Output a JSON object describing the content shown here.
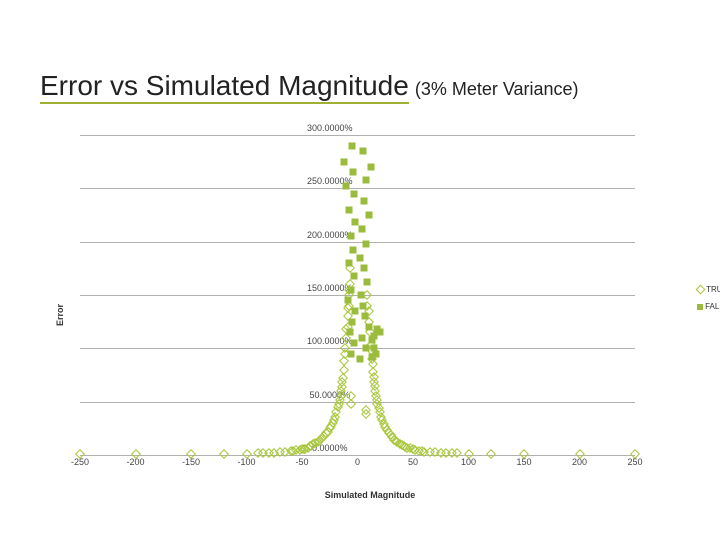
{
  "title": {
    "main": "Error vs Simulated Magnitude",
    "sub": "(3% Meter Variance)",
    "underline_color": "#a0b030"
  },
  "chart": {
    "type": "scatter",
    "background_color": "#ffffff",
    "grid_color": "#b0b0b0",
    "xlabel": "Simulated Magnitude",
    "ylabel": "Error",
    "label_fontsize": 9,
    "tick_fontsize": 9,
    "xlim": [
      -250,
      250
    ],
    "ylim": [
      0,
      300
    ],
    "xticks": [
      -250,
      -200,
      -150,
      -100,
      -50,
      0,
      50,
      100,
      150,
      200,
      250
    ],
    "yticks": [
      0,
      50,
      100,
      150,
      200,
      250,
      300
    ],
    "ytick_labels": [
      "0.0000%",
      "50.0000%",
      "100.0000%",
      "150.0000%",
      "200.0000%",
      "250.0000%",
      "300.0000%"
    ],
    "legend": {
      "items": [
        {
          "label": "TRUE",
          "color": "#a8c63a",
          "marker": "diamond"
        },
        {
          "label": "FALSE",
          "color": "#9bbb3c",
          "marker": "square"
        }
      ]
    },
    "series": {
      "true": {
        "color": "#a8c63a",
        "marker": "diamond",
        "points": [
          [
            -250,
            0.5
          ],
          [
            -200,
            0.6
          ],
          [
            -150,
            0.8
          ],
          [
            -120,
            1.0
          ],
          [
            -100,
            1.2
          ],
          [
            -90,
            1.5
          ],
          [
            -80,
            2.0
          ],
          [
            -70,
            2.5
          ],
          [
            -60,
            3.5
          ],
          [
            -55,
            4.5
          ],
          [
            -50,
            5.5
          ],
          [
            -48,
            6.0
          ],
          [
            -45,
            7.0
          ],
          [
            -42,
            8.5
          ],
          [
            -40,
            10.0
          ],
          [
            -38,
            11.0
          ],
          [
            -36,
            12.0
          ],
          [
            -35,
            13.5
          ],
          [
            -33,
            15.0
          ],
          [
            -32,
            16.0
          ],
          [
            -30,
            18.0
          ],
          [
            -28,
            20.5
          ],
          [
            -27,
            22.0
          ],
          [
            -25,
            25.0
          ],
          [
            -24,
            27.0
          ],
          [
            -22,
            30.0
          ],
          [
            -21,
            33.0
          ],
          [
            -20,
            36.0
          ],
          [
            -19,
            40.0
          ],
          [
            -18,
            45.0
          ],
          [
            -17,
            48.0
          ],
          [
            -16,
            52.0
          ],
          [
            -15,
            55.0
          ],
          [
            -15,
            60.0
          ],
          [
            -14,
            64.0
          ],
          [
            -14,
            68.0
          ],
          [
            -13,
            72.0
          ],
          [
            -12,
            80.0
          ],
          [
            -12,
            88.0
          ],
          [
            -11,
            95.0
          ],
          [
            -11,
            100.0
          ],
          [
            -10,
            110.0
          ],
          [
            -10,
            118.0
          ],
          [
            -9,
            120.0
          ],
          [
            -9,
            130.0
          ],
          [
            -9,
            138.0
          ],
          [
            -8,
            140.0
          ],
          [
            -8,
            150.0
          ],
          [
            -8,
            155.0
          ],
          [
            -7,
            160.0
          ],
          [
            -7,
            175.0
          ],
          [
            -6,
            55.0
          ],
          [
            -6,
            48.0
          ],
          [
            -47,
            5.8
          ],
          [
            -52,
            5.0
          ],
          [
            -58,
            3.8
          ],
          [
            -65,
            3.0
          ],
          [
            -75,
            2.3
          ],
          [
            -43,
            8.0
          ],
          [
            -85,
            1.8
          ],
          [
            250,
            0.5
          ],
          [
            200,
            0.6
          ],
          [
            150,
            0.7
          ],
          [
            120,
            1.0
          ],
          [
            100,
            1.2
          ],
          [
            90,
            1.5
          ],
          [
            80,
            1.8
          ],
          [
            70,
            2.4
          ],
          [
            60,
            3.2
          ],
          [
            55,
            4.0
          ],
          [
            52,
            4.8
          ],
          [
            50,
            5.4
          ],
          [
            47,
            6.3
          ],
          [
            45,
            7.0
          ],
          [
            42,
            8.2
          ],
          [
            40,
            9.5
          ],
          [
            38,
            10.5
          ],
          [
            36,
            11.8
          ],
          [
            35,
            13.0
          ],
          [
            33,
            14.5
          ],
          [
            31,
            17.0
          ],
          [
            30,
            18.5
          ],
          [
            28,
            21.0
          ],
          [
            27,
            23.0
          ],
          [
            25,
            26.5
          ],
          [
            24,
            29.0
          ],
          [
            22,
            33.0
          ],
          [
            21,
            36.0
          ],
          [
            20,
            40.0
          ],
          [
            19,
            44.0
          ],
          [
            18,
            48.0
          ],
          [
            18,
            52.0
          ],
          [
            17,
            55.0
          ],
          [
            16,
            60.0
          ],
          [
            16,
            65.0
          ],
          [
            15,
            68.0
          ],
          [
            15,
            73.0
          ],
          [
            14,
            78.0
          ],
          [
            14,
            85.0
          ],
          [
            13,
            90.0
          ],
          [
            12,
            98.0
          ],
          [
            12,
            103.0
          ],
          [
            11,
            115.0
          ],
          [
            10,
            125.0
          ],
          [
            10,
            135.0
          ],
          [
            9,
            140.0
          ],
          [
            9,
            150.0
          ],
          [
            8,
            38.0
          ],
          [
            8,
            42.0
          ],
          [
            85,
            1.7
          ],
          [
            75,
            2.2
          ],
          [
            65,
            2.9
          ],
          [
            58,
            3.7
          ],
          [
            43,
            7.8
          ]
        ]
      },
      "false": {
        "color": "#9bbb3c",
        "marker": "square",
        "points": [
          [
            -5,
            290.0
          ],
          [
            5,
            285.0
          ],
          [
            -12,
            275.0
          ],
          [
            12,
            270.0
          ],
          [
            -4,
            265.0
          ],
          [
            8,
            258.0
          ],
          [
            -10,
            252.0
          ],
          [
            -3,
            245.0
          ],
          [
            6,
            238.0
          ],
          [
            -8,
            230.0
          ],
          [
            10,
            225.0
          ],
          [
            -2,
            218.0
          ],
          [
            4,
            212.0
          ],
          [
            -6,
            205.0
          ],
          [
            8,
            198.0
          ],
          [
            -4,
            192.0
          ],
          [
            2,
            185.0
          ],
          [
            -8,
            180.0
          ],
          [
            6,
            175.0
          ],
          [
            -3,
            168.0
          ],
          [
            9,
            162.0
          ],
          [
            -6,
            155.0
          ],
          [
            3,
            150.0
          ],
          [
            -9,
            145.0
          ],
          [
            5,
            140.0
          ],
          [
            -2,
            135.0
          ],
          [
            7,
            130.0
          ],
          [
            -5,
            125.0
          ],
          [
            10,
            120.0
          ],
          [
            -7,
            115.0
          ],
          [
            4,
            110.0
          ],
          [
            -3,
            105.0
          ],
          [
            8,
            100.0
          ],
          [
            -6,
            95.0
          ],
          [
            2,
            90.0
          ],
          [
            13,
            108.0
          ],
          [
            15,
            112.0
          ],
          [
            18,
            118.0
          ],
          [
            20,
            115.0
          ],
          [
            15,
            100.0
          ],
          [
            17,
            95.0
          ],
          [
            13,
            92.0
          ]
        ]
      }
    }
  }
}
